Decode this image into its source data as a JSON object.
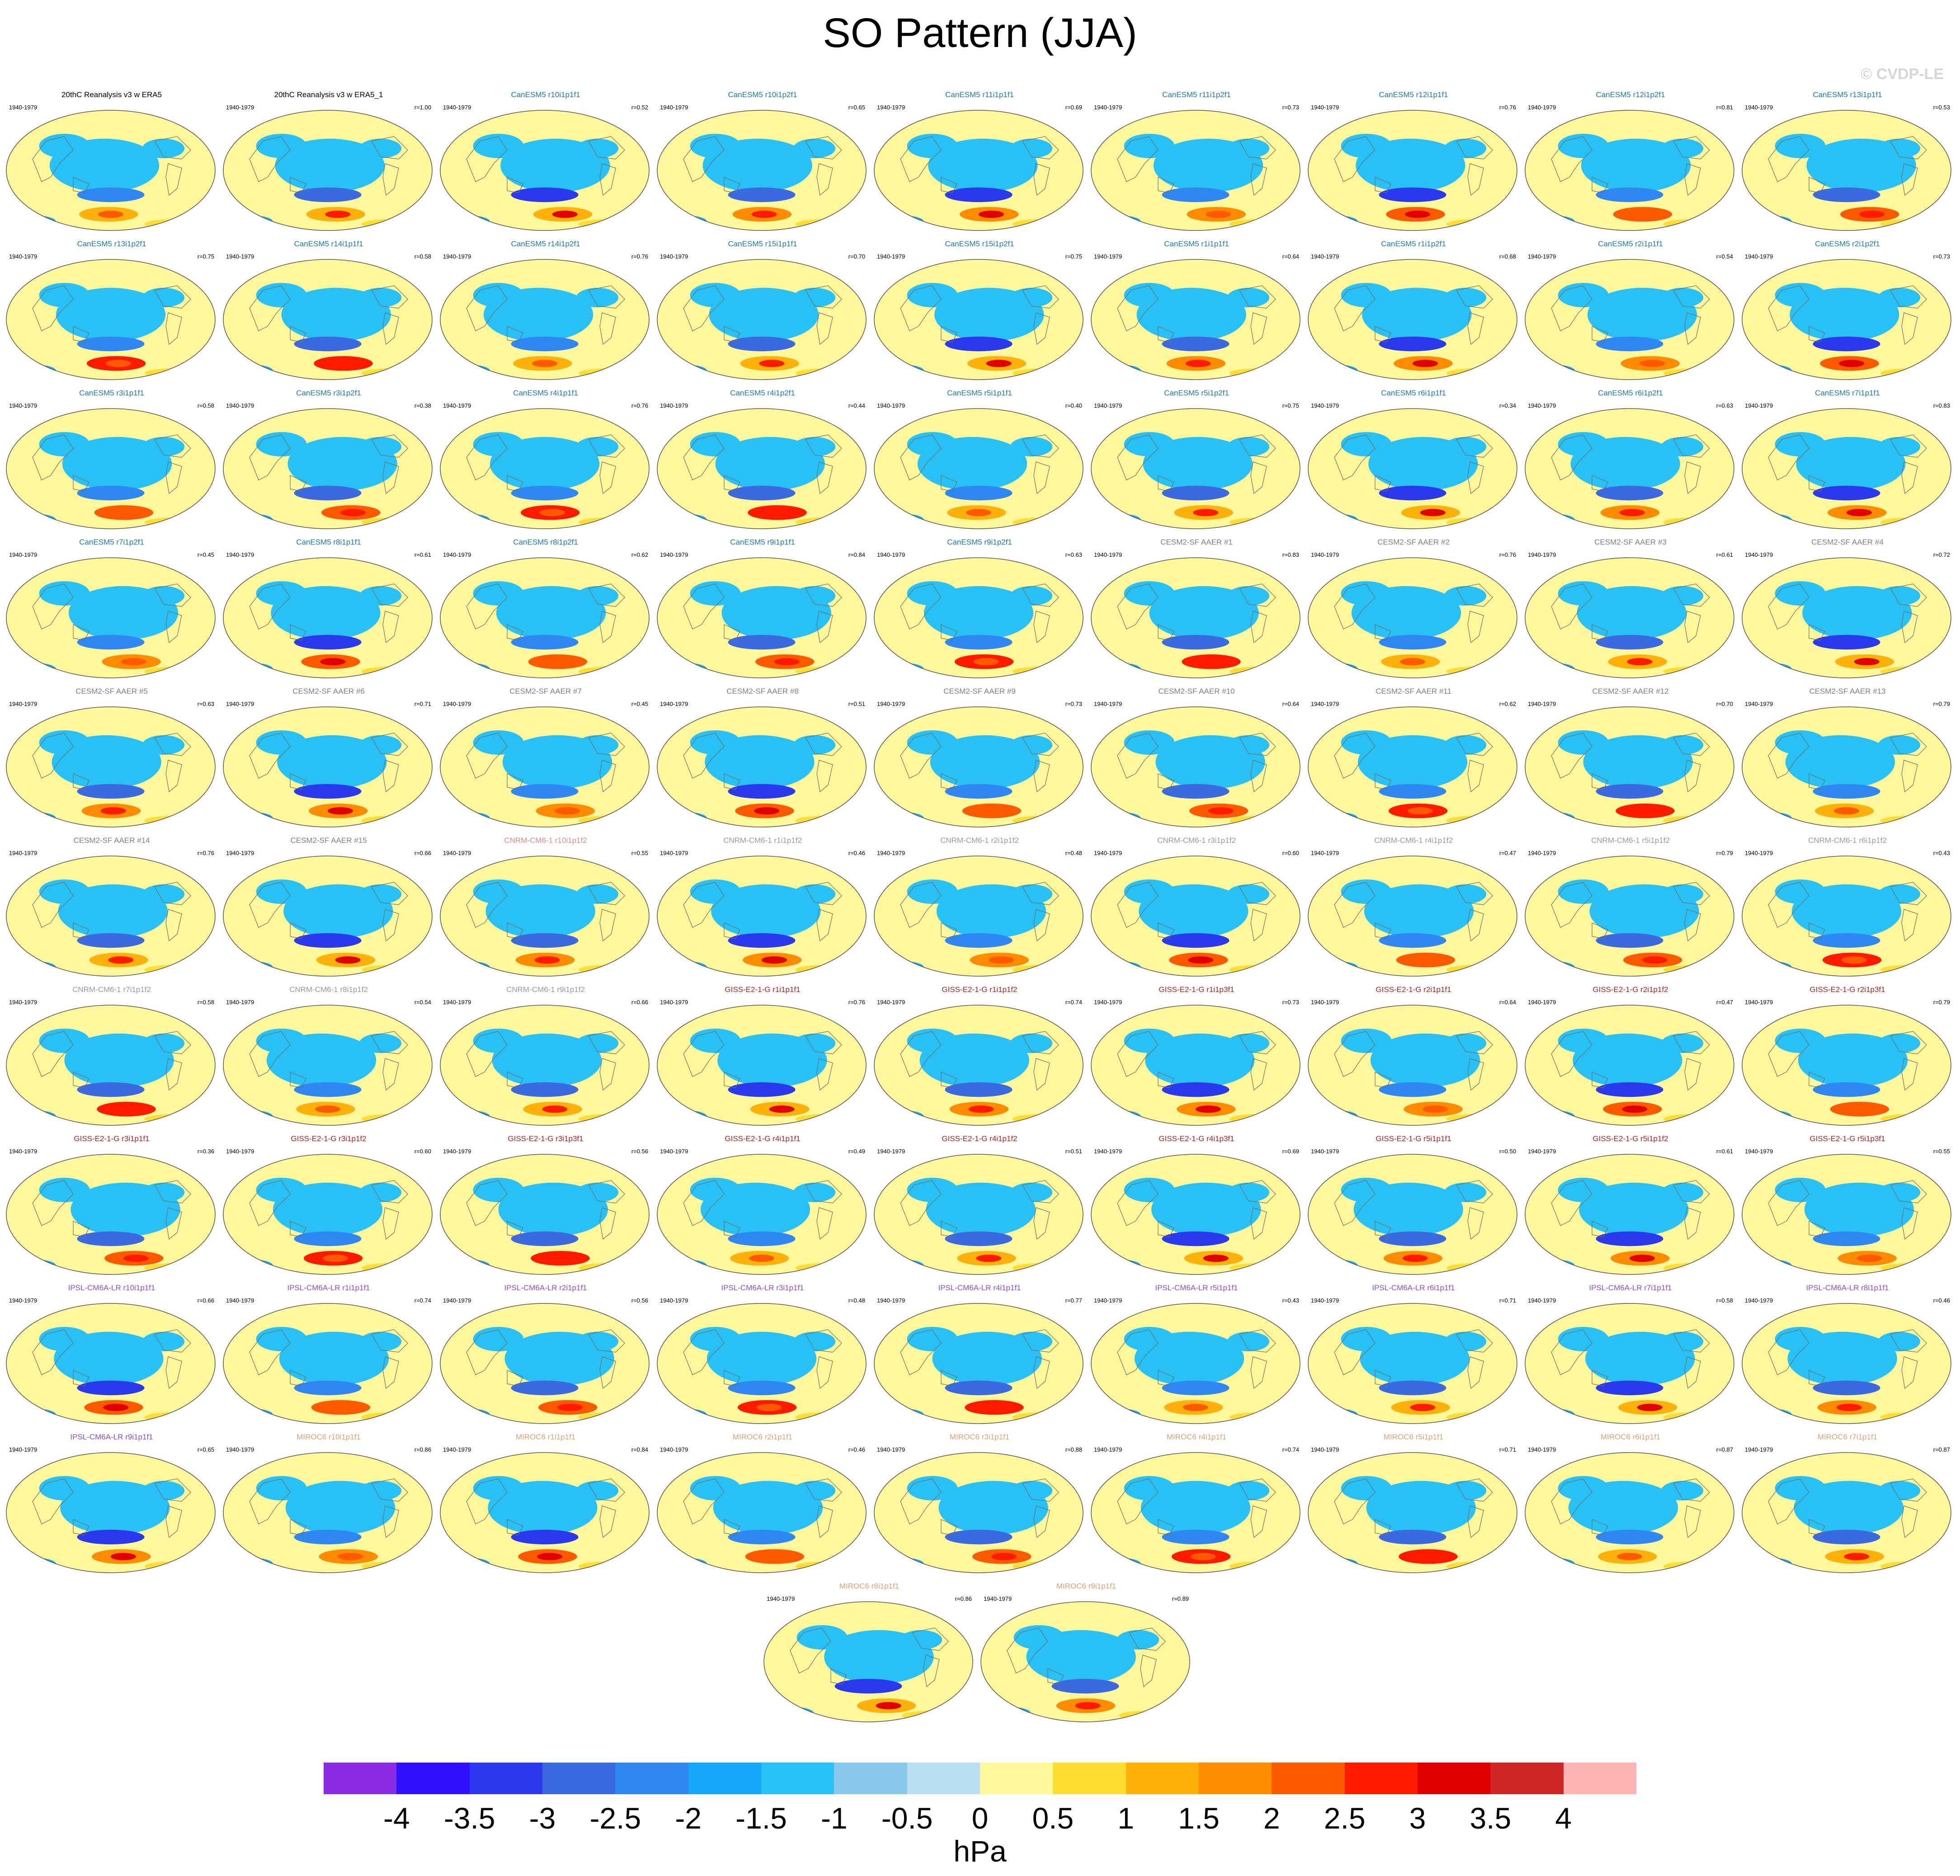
{
  "title": "SO Pattern (JJA)",
  "watermark": "© CVDP-LE",
  "units": "hPa",
  "colorbar": {
    "labels": [
      "-4",
      "-3.5",
      "-3",
      "-2.5",
      "-2",
      "-1.5",
      "-1",
      "-0.5",
      "0",
      "0.5",
      "1",
      "1.5",
      "2",
      "2.5",
      "3",
      "3.5",
      "4"
    ],
    "colors": [
      "#8a2be2",
      "#3010ff",
      "#2a39ee",
      "#3b6ae0",
      "#2f87f4",
      "#14a6f7",
      "#27c1f5",
      "#87c8ec",
      "#b9dff0",
      "#fff89a",
      "#ffdd33",
      "#ffb10b",
      "#ff8c00",
      "#ff5a00",
      "#ff1a00",
      "#e00000",
      "#cc2626",
      "#ffb3b3"
    ]
  },
  "chart_data": {
    "type": "heatmap",
    "title": "SO Pattern (JJA)",
    "colorbar_label": "hPa",
    "value_range": [
      -4,
      4
    ],
    "period": "1940-1979",
    "panels": [
      {
        "title": "20thC Reanalysis v3 w ERA5",
        "r": "",
        "color": "#000000"
      },
      {
        "title": "20thC Reanalysis v3 w ERA5_1",
        "r": "r=1.00",
        "color": "#000000"
      },
      {
        "title": "CanESM5 r10i1p1f1",
        "r": "r=0.52",
        "color": "#1f77b4"
      },
      {
        "title": "CanESM5 r10i1p2f1",
        "r": "r=0.65",
        "color": "#1f77b4"
      },
      {
        "title": "CanESM5 r11i1p1f1",
        "r": "r=0.69",
        "color": "#1f77b4"
      },
      {
        "title": "CanESM5 r11i1p2f1",
        "r": "r=0.73",
        "color": "#1f77b4"
      },
      {
        "title": "CanESM5 r12i1p1f1",
        "r": "r=0.76",
        "color": "#1f77b4"
      },
      {
        "title": "CanESM5 r12i1p2f1",
        "r": "r=0.81",
        "color": "#1f77b4"
      },
      {
        "title": "CanESM5 r13i1p1f1",
        "r": "r=0.53",
        "color": "#1f77b4"
      },
      {
        "title": "CanESM5 r13i1p2f1",
        "r": "r=0.75",
        "color": "#1f77b4"
      },
      {
        "title": "CanESM5 r14i1p1f1",
        "r": "r=0.58",
        "color": "#1f77b4"
      },
      {
        "title": "CanESM5 r14i1p2f1",
        "r": "r=0.76",
        "color": "#1f77b4"
      },
      {
        "title": "CanESM5 r15i1p1f1",
        "r": "r=0.70",
        "color": "#1f77b4"
      },
      {
        "title": "CanESM5 r15i1p2f1",
        "r": "r=0.75",
        "color": "#1f77b4"
      },
      {
        "title": "CanESM5 r1i1p1f1",
        "r": "r=0.64",
        "color": "#1f77b4"
      },
      {
        "title": "CanESM5 r1i1p2f1",
        "r": "r=0.68",
        "color": "#1f77b4"
      },
      {
        "title": "CanESM5 r2i1p1f1",
        "r": "r=0.54",
        "color": "#1f77b4"
      },
      {
        "title": "CanESM5 r2i1p2f1",
        "r": "r=0.73",
        "color": "#1f77b4"
      },
      {
        "title": "CanESM5 r3i1p1f1",
        "r": "r=0.58",
        "color": "#1f77b4"
      },
      {
        "title": "CanESM5 r3i1p2f1",
        "r": "r=0.38",
        "color": "#1f77b4"
      },
      {
        "title": "CanESM5 r4i1p1f1",
        "r": "r=0.76",
        "color": "#1f77b4"
      },
      {
        "title": "CanESM5 r4i1p2f1",
        "r": "r=0.44",
        "color": "#1f77b4"
      },
      {
        "title": "CanESM5 r5i1p1f1",
        "r": "r=0.40",
        "color": "#1f77b4"
      },
      {
        "title": "CanESM5 r5i1p2f1",
        "r": "r=0.75",
        "color": "#1f77b4"
      },
      {
        "title": "CanESM5 r6i1p1f1",
        "r": "r=0.34",
        "color": "#1f77b4"
      },
      {
        "title": "CanESM5 r6i1p2f1",
        "r": "r=0.63",
        "color": "#1f77b4"
      },
      {
        "title": "CanESM5 r7i1p1f1",
        "r": "r=0.83",
        "color": "#1f77b4"
      },
      {
        "title": "CanESM5 r7i1p2f1",
        "r": "r=0.45",
        "color": "#1f77b4"
      },
      {
        "title": "CanESM5 r8i1p1f1",
        "r": "r=0.61",
        "color": "#1f77b4"
      },
      {
        "title": "CanESM5 r8i1p2f1",
        "r": "r=0.62",
        "color": "#1f77b4"
      },
      {
        "title": "CanESM5 r9i1p1f1",
        "r": "r=0.84",
        "color": "#1f77b4"
      },
      {
        "title": "CanESM5 r9i1p2f1",
        "r": "r=0.63",
        "color": "#1f77b4"
      },
      {
        "title": "CESM2-SF AAER #1",
        "r": "r=0.83",
        "color": "#808080"
      },
      {
        "title": "CESM2-SF AAER #2",
        "r": "r=0.76",
        "color": "#808080"
      },
      {
        "title": "CESM2-SF AAER #3",
        "r": "r=0.61",
        "color": "#808080"
      },
      {
        "title": "CESM2-SF AAER #4",
        "r": "r=0.72",
        "color": "#808080"
      },
      {
        "title": "CESM2-SF AAER #5",
        "r": "r=0.63",
        "color": "#808080"
      },
      {
        "title": "CESM2-SF AAER #6",
        "r": "r=0.71",
        "color": "#808080"
      },
      {
        "title": "CESM2-SF AAER #7",
        "r": "r=0.45",
        "color": "#808080"
      },
      {
        "title": "CESM2-SF AAER #8",
        "r": "r=0.51",
        "color": "#808080"
      },
      {
        "title": "CESM2-SF AAER #9",
        "r": "r=0.73",
        "color": "#808080"
      },
      {
        "title": "CESM2-SF AAER #10",
        "r": "r=0.64",
        "color": "#808080"
      },
      {
        "title": "CESM2-SF AAER #11",
        "r": "r=0.62",
        "color": "#808080"
      },
      {
        "title": "CESM2-SF AAER #12",
        "r": "r=0.70",
        "color": "#808080"
      },
      {
        "title": "CESM2-SF AAER #13",
        "r": "r=0.79",
        "color": "#808080"
      },
      {
        "title": "CESM2-SF AAER #14",
        "r": "r=0.76",
        "color": "#808080"
      },
      {
        "title": "CESM2-SF AAER #15",
        "r": "r=0.66",
        "color": "#808080"
      },
      {
        "title": "CNRM-CM6-1 r10i1p1f2",
        "r": "r=0.55",
        "color": "#e08a8a"
      },
      {
        "title": "CNRM-CM6-1 r1i1p1f2",
        "r": "r=0.46",
        "color": "#9a9a9a"
      },
      {
        "title": "CNRM-CM6-1 r2i1p1f2",
        "r": "r=0.48",
        "color": "#9a9a9a"
      },
      {
        "title": "CNRM-CM6-1 r3i1p1f2",
        "r": "r=0.60",
        "color": "#9a9a9a"
      },
      {
        "title": "CNRM-CM6-1 r4i1p1f2",
        "r": "r=0.47",
        "color": "#9a9a9a"
      },
      {
        "title": "CNRM-CM6-1 r5i1p1f2",
        "r": "r=0.79",
        "color": "#9a9a9a"
      },
      {
        "title": "CNRM-CM6-1 r6i1p1f2",
        "r": "r=0.43",
        "color": "#9a9a9a"
      },
      {
        "title": "CNRM-CM6-1 r7i1p1f2",
        "r": "r=0.58",
        "color": "#9a9a9a"
      },
      {
        "title": "CNRM-CM6-1 r8i1p1f2",
        "r": "r=0.54",
        "color": "#9a9a9a"
      },
      {
        "title": "CNRM-CM6-1 r9i1p1f2",
        "r": "r=0.66",
        "color": "#9a9a9a"
      },
      {
        "title": "GISS-E2-1-G r1i1p1f1",
        "r": "r=0.76",
        "color": "#b22222"
      },
      {
        "title": "GISS-E2-1-G r1i1p1f2",
        "r": "r=0.74",
        "color": "#b22222"
      },
      {
        "title": "GISS-E2-1-G r1i1p3f1",
        "r": "r=0.73",
        "color": "#b22222"
      },
      {
        "title": "GISS-E2-1-G r2i1p1f1",
        "r": "r=0.64",
        "color": "#b22222"
      },
      {
        "title": "GISS-E2-1-G r2i1p1f2",
        "r": "r=0.47",
        "color": "#b22222"
      },
      {
        "title": "GISS-E2-1-G r2i1p3f1",
        "r": "r=0.79",
        "color": "#b22222"
      },
      {
        "title": "GISS-E2-1-G r3i1p1f1",
        "r": "r=0.36",
        "color": "#b22222"
      },
      {
        "title": "GISS-E2-1-G r3i1p1f2",
        "r": "r=0.60",
        "color": "#b22222"
      },
      {
        "title": "GISS-E2-1-G r3i1p3f1",
        "r": "r=0.56",
        "color": "#b22222"
      },
      {
        "title": "GISS-E2-1-G r4i1p1f1",
        "r": "r=0.49",
        "color": "#b22222"
      },
      {
        "title": "GISS-E2-1-G r4i1p1f2",
        "r": "r=0.51",
        "color": "#b22222"
      },
      {
        "title": "GISS-E2-1-G r4i1p3f1",
        "r": "r=0.69",
        "color": "#b22222"
      },
      {
        "title": "GISS-E2-1-G r5i1p1f1",
        "r": "r=0.50",
        "color": "#b22222"
      },
      {
        "title": "GISS-E2-1-G r5i1p1f2",
        "r": "r=0.61",
        "color": "#b22222"
      },
      {
        "title": "GISS-E2-1-G r5i1p3f1",
        "r": "r=0.55",
        "color": "#b22222"
      },
      {
        "title": "IPSL-CM6A-LR r10i1p1f1",
        "r": "r=0.66",
        "color": "#8a4fd8"
      },
      {
        "title": "IPSL-CM6A-LR r1i1p1f1",
        "r": "r=0.74",
        "color": "#8a4fd8"
      },
      {
        "title": "IPSL-CM6A-LR r2i1p1f1",
        "r": "r=0.56",
        "color": "#8a4fd8"
      },
      {
        "title": "IPSL-CM6A-LR r3i1p1f1",
        "r": "r=0.48",
        "color": "#8a4fd8"
      },
      {
        "title": "IPSL-CM6A-LR r4i1p1f1",
        "r": "r=0.77",
        "color": "#8a4fd8"
      },
      {
        "title": "IPSL-CM6A-LR r5i1p1f1",
        "r": "r=0.43",
        "color": "#8a4fd8"
      },
      {
        "title": "IPSL-CM6A-LR r6i1p1f1",
        "r": "r=0.71",
        "color": "#8a4fd8"
      },
      {
        "title": "IPSL-CM6A-LR r7i1p1f1",
        "r": "r=0.58",
        "color": "#8a4fd8"
      },
      {
        "title": "IPSL-CM6A-LR r8i1p1f1",
        "r": "r=0.46",
        "color": "#8a4fd8"
      },
      {
        "title": "IPSL-CM6A-LR r9i1p1f1",
        "r": "r=0.65",
        "color": "#8a4fd8"
      },
      {
        "title": "MIROC6 r10i1p1f1",
        "r": "r=0.86",
        "color": "#e0a070"
      },
      {
        "title": "MIROC6 r1i1p1f1",
        "r": "r=0.84",
        "color": "#e0a070"
      },
      {
        "title": "MIROC6 r2i1p1f1",
        "r": "r=0.46",
        "color": "#e0a070"
      },
      {
        "title": "MIROC6 r3i1p1f1",
        "r": "r=0.88",
        "color": "#e0a070"
      },
      {
        "title": "MIROC6 r4i1p1f1",
        "r": "r=0.74",
        "color": "#e0a070"
      },
      {
        "title": "MIROC6 r5i1p1f1",
        "r": "r=0.71",
        "color": "#e0a070"
      },
      {
        "title": "MIROC6 r6i1p1f1",
        "r": "r=0.87",
        "color": "#e0a070"
      },
      {
        "title": "MIROC6 r7i1p1f1",
        "r": "r=0.87",
        "color": "#e0a070"
      },
      {
        "title": "MIROC6 r8i1p1f1",
        "r": "r=0.86",
        "color": "#e0a070"
      },
      {
        "title": "MIROC6 r9i1p1f1",
        "r": "r=0.89",
        "color": "#e0a070"
      }
    ]
  }
}
